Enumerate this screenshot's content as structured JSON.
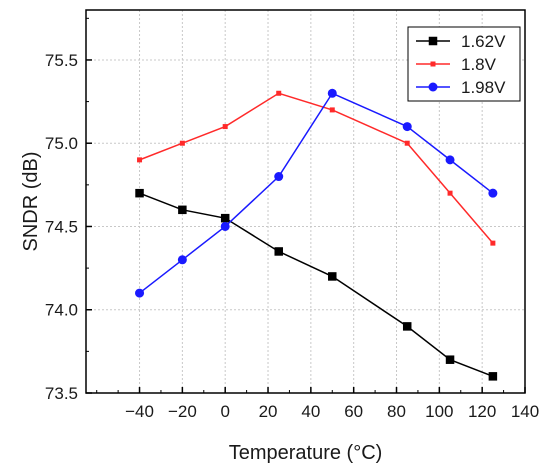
{
  "chart_data": {
    "type": "line",
    "title": "",
    "xlabel": "Temperature (°C)",
    "ylabel": "SNDR (dB)",
    "xlim": [
      -65,
      140
    ],
    "ylim": [
      73.5,
      75.8
    ],
    "xticks": [
      -40,
      -20,
      0,
      20,
      40,
      60,
      80,
      100,
      120,
      140
    ],
    "xtick_labels": [
      "−40",
      "−20",
      "0",
      "20",
      "40",
      "60",
      "80",
      "100",
      "120",
      "140"
    ],
    "yticks": [
      73.5,
      74.0,
      74.5,
      75.0,
      75.5
    ],
    "ytick_labels": [
      "73.5",
      "74.0",
      "74.5",
      "75.0",
      "75.5"
    ],
    "grid": true,
    "legend_position": "top-right",
    "series": [
      {
        "name": "1.62V",
        "color": "#000000",
        "marker": "square",
        "x": [
          -40,
          -20,
          0,
          25,
          50,
          85,
          105,
          125
        ],
        "y": [
          74.7,
          74.6,
          74.55,
          74.35,
          74.2,
          73.9,
          73.7,
          73.6
        ]
      },
      {
        "name": "1.8V",
        "color": "#ff2a2a",
        "marker": "small-square",
        "x": [
          -40,
          -20,
          0,
          25,
          50,
          85,
          105,
          125
        ],
        "y": [
          74.9,
          75.0,
          75.1,
          75.3,
          75.2,
          75.0,
          74.7,
          74.4
        ]
      },
      {
        "name": "1.98V",
        "color": "#1a1aff",
        "marker": "circle",
        "x": [
          -40,
          -20,
          0,
          25,
          50,
          85,
          105,
          125
        ],
        "y": [
          74.1,
          74.3,
          74.5,
          74.8,
          75.3,
          75.1,
          74.9,
          74.7
        ]
      }
    ]
  }
}
